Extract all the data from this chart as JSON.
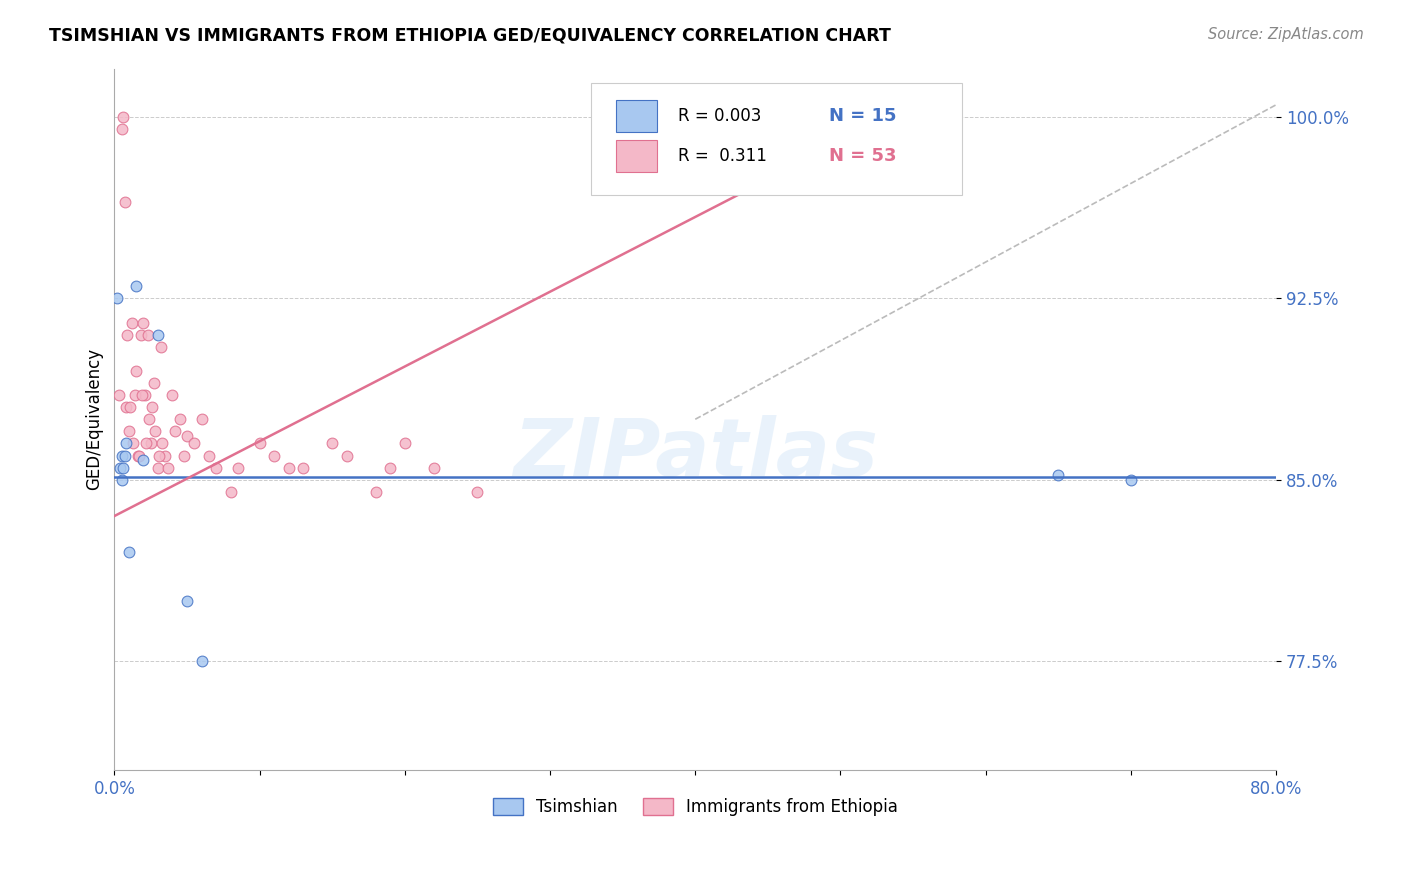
{
  "title": "TSIMSHIAN VS IMMIGRANTS FROM ETHIOPIA GED/EQUIVALENCY CORRELATION CHART",
  "source": "Source: ZipAtlas.com",
  "ylabel": "GED/Equivalency",
  "xmin": 0.0,
  "xmax": 80.0,
  "ymin": 73.0,
  "ymax": 102.0,
  "yticks": [
    77.5,
    85.0,
    92.5,
    100.0
  ],
  "ytick_labels": [
    "77.5%",
    "85.0%",
    "92.5%",
    "100.0%"
  ],
  "xticks": [
    0.0,
    10.0,
    20.0,
    30.0,
    40.0,
    50.0,
    60.0,
    70.0,
    80.0
  ],
  "xtick_labels": [
    "0.0%",
    "",
    "",
    "",
    "",
    "",
    "",
    "",
    "80.0%"
  ],
  "color_blue": "#a8c8f0",
  "color_pink": "#f4b8c8",
  "color_blue_edge": "#4472c4",
  "color_pink_edge": "#e07090",
  "color_blue_line": "#4472c4",
  "color_pink_line": "#e07090",
  "color_diag": "#bbbbbb",
  "watermark": "ZIPatlas",
  "tsimshian_x": [
    0.2,
    0.4,
    0.5,
    0.5,
    0.6,
    0.7,
    0.8,
    1.0,
    1.5,
    2.0,
    3.0,
    5.0,
    6.0,
    65.0,
    70.0
  ],
  "tsimshian_y": [
    92.5,
    85.5,
    85.0,
    86.0,
    85.5,
    86.0,
    86.5,
    82.0,
    93.0,
    85.8,
    91.0,
    80.0,
    77.5,
    85.2,
    85.0
  ],
  "ethiopia_x": [
    0.5,
    0.6,
    0.7,
    0.8,
    1.0,
    1.2,
    1.3,
    1.5,
    1.6,
    1.8,
    2.0,
    2.1,
    2.3,
    2.5,
    2.7,
    3.0,
    3.2,
    3.5,
    4.0,
    4.5,
    5.0,
    6.0,
    7.0,
    8.0,
    10.0,
    12.0,
    15.0,
    18.0,
    20.0,
    22.0,
    25.0,
    0.3,
    0.9,
    1.1,
    1.4,
    1.7,
    1.9,
    2.2,
    2.4,
    2.6,
    2.8,
    3.1,
    3.3,
    3.7,
    4.2,
    4.8,
    5.5,
    6.5,
    8.5,
    11.0,
    13.0,
    16.0,
    19.0
  ],
  "ethiopia_y": [
    99.5,
    100.0,
    96.5,
    88.0,
    87.0,
    91.5,
    86.5,
    89.5,
    86.0,
    91.0,
    91.5,
    88.5,
    91.0,
    86.5,
    89.0,
    85.5,
    90.5,
    86.0,
    88.5,
    87.5,
    86.8,
    87.5,
    85.5,
    84.5,
    86.5,
    85.5,
    86.5,
    84.5,
    86.5,
    85.5,
    84.5,
    88.5,
    91.0,
    88.0,
    88.5,
    86.0,
    88.5,
    86.5,
    87.5,
    88.0,
    87.0,
    86.0,
    86.5,
    85.5,
    87.0,
    86.0,
    86.5,
    86.0,
    85.5,
    86.0,
    85.5,
    86.0,
    85.5
  ],
  "pink_line_x0": 0.0,
  "pink_line_y0": 83.5,
  "pink_line_x1": 55.0,
  "pink_line_y1": 100.5,
  "blue_line_y": 85.1,
  "diag_x0": 40.0,
  "diag_y0": 87.5,
  "diag_x1": 80.0,
  "diag_y1": 100.5
}
